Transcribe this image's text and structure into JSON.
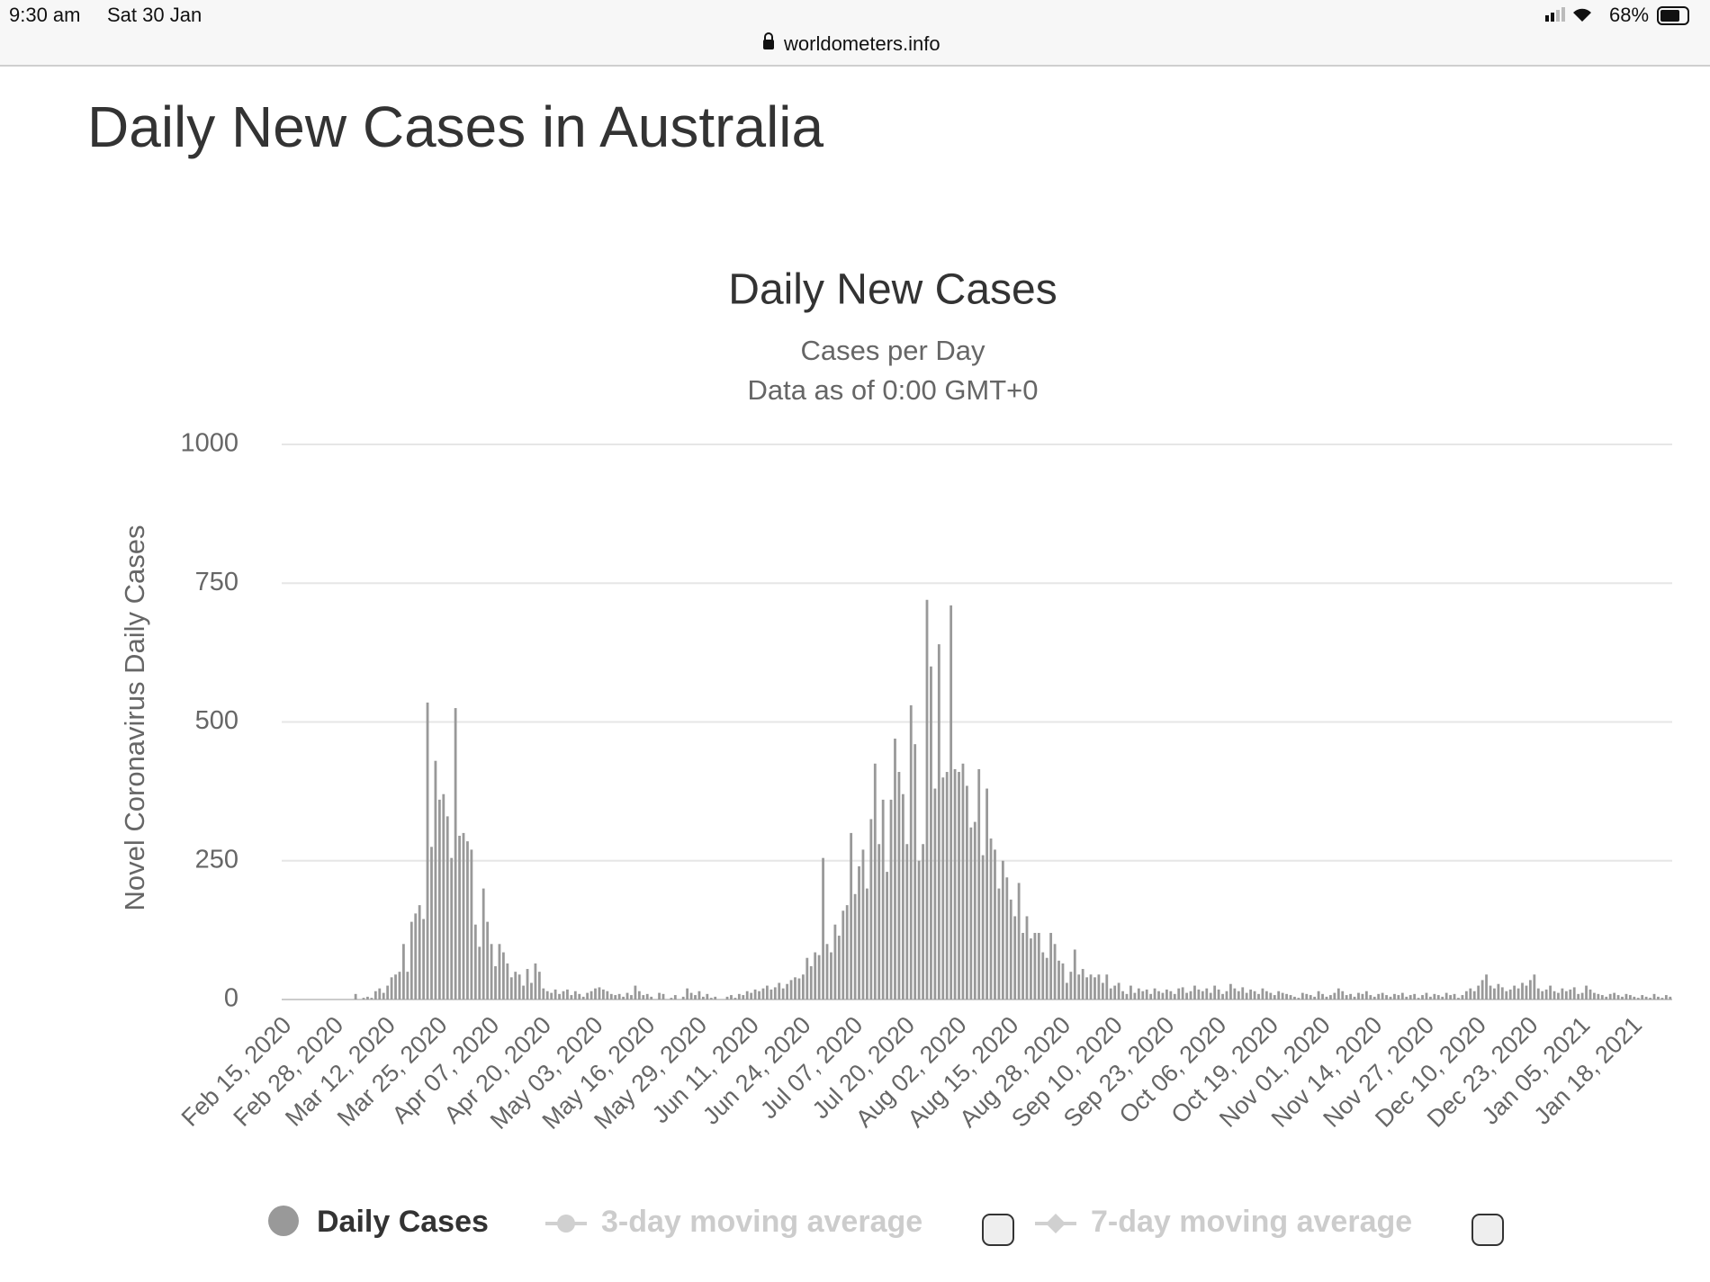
{
  "status_bar": {
    "time": "9:30 am",
    "date": "Sat 30 Jan",
    "url": "worldometers.info",
    "battery": "68%"
  },
  "page_title": "Daily New Cases in Australia",
  "chart_data": {
    "type": "bar",
    "title": "Daily New Cases",
    "subtitle": [
      "Cases per Day",
      "Data as of 0:00 GMT+0"
    ],
    "y_label": "Novel Coronavirus Daily Cases",
    "ylim": [
      0,
      1000
    ],
    "yticks": [
      0,
      250,
      500,
      750,
      1000
    ],
    "grid": true,
    "categories": [
      "Feb 15, 2020",
      null,
      null,
      null,
      null,
      null,
      null,
      null,
      null,
      null,
      null,
      null,
      null,
      "Feb 28, 2020",
      null,
      null,
      null,
      null,
      null,
      null,
      null,
      null,
      null,
      null,
      null,
      null,
      "Mar 12, 2020",
      null,
      null,
      null,
      null,
      null,
      null,
      null,
      null,
      null,
      null,
      null,
      null,
      "Mar 25, 2020",
      null,
      null,
      null,
      null,
      null,
      null,
      null,
      null,
      null,
      null,
      null,
      null,
      "Apr 07, 2020",
      null,
      null,
      null,
      null,
      null,
      null,
      null,
      null,
      null,
      null,
      null,
      null,
      "Apr 20, 2020",
      null,
      null,
      null,
      null,
      null,
      null,
      null,
      null,
      null,
      null,
      null,
      null,
      "May 03, 2020",
      null,
      null,
      null,
      null,
      null,
      null,
      null,
      null,
      null,
      null,
      null,
      null,
      "May 16, 2020",
      null,
      null,
      null,
      null,
      null,
      null,
      null,
      null,
      null,
      null,
      null,
      null,
      "May 29, 2020",
      null,
      null,
      null,
      null,
      null,
      null,
      null,
      null,
      null,
      null,
      null,
      null,
      "Jun 11, 2020",
      null,
      null,
      null,
      null,
      null,
      null,
      null,
      null,
      null,
      null,
      null,
      null,
      "Jun 24, 2020",
      null,
      null,
      null,
      null,
      null,
      null,
      null,
      null,
      null,
      null,
      null,
      null,
      "Jul 07, 2020",
      null,
      null,
      null,
      null,
      null,
      null,
      null,
      null,
      null,
      null,
      null,
      null,
      "Jul 20, 2020",
      null,
      null,
      null,
      null,
      null,
      null,
      null,
      null,
      null,
      null,
      null,
      null,
      "Aug 02, 2020",
      null,
      null,
      null,
      null,
      null,
      null,
      null,
      null,
      null,
      null,
      null,
      null,
      "Aug 15, 2020",
      null,
      null,
      null,
      null,
      null,
      null,
      null,
      null,
      null,
      null,
      null,
      null,
      "Aug 28, 2020",
      null,
      null,
      null,
      null,
      null,
      null,
      null,
      null,
      null,
      null,
      null,
      null,
      "Sep 10, 2020",
      null,
      null,
      null,
      null,
      null,
      null,
      null,
      null,
      null,
      null,
      null,
      null,
      "Sep 23, 2020",
      null,
      null,
      null,
      null,
      null,
      null,
      null,
      null,
      null,
      null,
      null,
      null,
      "Oct 06, 2020",
      null,
      null,
      null,
      null,
      null,
      null,
      null,
      null,
      null,
      null,
      null,
      null,
      "Oct 19, 2020",
      null,
      null,
      null,
      null,
      null,
      null,
      null,
      null,
      null,
      null,
      null,
      null,
      "Nov 01, 2020",
      null,
      null,
      null,
      null,
      null,
      null,
      null,
      null,
      null,
      null,
      null,
      null,
      "Nov 14, 2020",
      null,
      null,
      null,
      null,
      null,
      null,
      null,
      null,
      null,
      null,
      null,
      null,
      "Nov 27, 2020",
      null,
      null,
      null,
      null,
      null,
      null,
      null,
      null,
      null,
      null,
      null,
      null,
      "Dec 10, 2020",
      null,
      null,
      null,
      null,
      null,
      null,
      null,
      null,
      null,
      null,
      null,
      null,
      "Dec 23, 2020",
      null,
      null,
      null,
      null,
      null,
      null,
      null,
      null,
      null,
      null,
      null,
      null,
      "Jan 05, 2021",
      null,
      null,
      null,
      null,
      null,
      null,
      null,
      null,
      null,
      null,
      null,
      null,
      "Jan 18, 2021",
      null,
      null,
      null,
      null,
      null,
      null,
      null,
      null,
      null
    ],
    "series": [
      {
        "name": "Daily Cases",
        "color": "#999999",
        "values": [
          0,
          0,
          0,
          0,
          0,
          0,
          0,
          0,
          0,
          0,
          0,
          0,
          0,
          0,
          0,
          0,
          0,
          0,
          10,
          0,
          3,
          5,
          3,
          15,
          20,
          12,
          25,
          40,
          45,
          50,
          100,
          50,
          140,
          155,
          170,
          145,
          535,
          275,
          430,
          360,
          370,
          330,
          255,
          525,
          295,
          300,
          285,
          270,
          135,
          95,
          200,
          140,
          100,
          60,
          100,
          85,
          65,
          40,
          50,
          45,
          25,
          55,
          30,
          65,
          50,
          20,
          15,
          12,
          18,
          10,
          15,
          18,
          8,
          15,
          10,
          5,
          12,
          15,
          20,
          22,
          18,
          15,
          10,
          8,
          10,
          5,
          12,
          8,
          25,
          15,
          8,
          10,
          5,
          0,
          12,
          10,
          0,
          3,
          8,
          0,
          5,
          20,
          12,
          8,
          15,
          5,
          10,
          3,
          5,
          0,
          0,
          5,
          8,
          3,
          10,
          8,
          15,
          12,
          18,
          15,
          20,
          25,
          18,
          22,
          30,
          20,
          28,
          35,
          40,
          38,
          45,
          75,
          60,
          85,
          80,
          255,
          100,
          85,
          135,
          115,
          160,
          170,
          300,
          190,
          240,
          270,
          200,
          325,
          425,
          280,
          360,
          230,
          360,
          470,
          410,
          370,
          280,
          530,
          460,
          250,
          280,
          720,
          600,
          380,
          640,
          400,
          410,
          710,
          415,
          410,
          425,
          385,
          310,
          320,
          415,
          260,
          380,
          290,
          270,
          200,
          250,
          220,
          180,
          150,
          210,
          120,
          150,
          110,
          120,
          120,
          85,
          75,
          120,
          100,
          70,
          65,
          30,
          50,
          90,
          45,
          55,
          40,
          45,
          40,
          45,
          30,
          45,
          20,
          25,
          30,
          15,
          10,
          25,
          12,
          20,
          15,
          18,
          10,
          20,
          15,
          12,
          18,
          15,
          10,
          20,
          22,
          12,
          15,
          25,
          18,
          15,
          20,
          12,
          25,
          18,
          10,
          15,
          28,
          20,
          15,
          22,
          12,
          18,
          15,
          10,
          20,
          15,
          12,
          8,
          15,
          12,
          10,
          8,
          5,
          3,
          12,
          10,
          8,
          5,
          15,
          10,
          5,
          8,
          12,
          20,
          15,
          8,
          10,
          5,
          12,
          10,
          15,
          8,
          5,
          10,
          12,
          8,
          5,
          10,
          8,
          12,
          5,
          8,
          10,
          3,
          8,
          12,
          5,
          10,
          8,
          5,
          12,
          8,
          10,
          3,
          8,
          15,
          20,
          15,
          25,
          35,
          45,
          25,
          20,
          28,
          22,
          15,
          18,
          25,
          20,
          30,
          25,
          35,
          45,
          20,
          15,
          18,
          25,
          15,
          12,
          20,
          15,
          18,
          22,
          10,
          12,
          25,
          18,
          12,
          10,
          8,
          5,
          10,
          12,
          8,
          5,
          10,
          8,
          5,
          3,
          8,
          5,
          3,
          10,
          5,
          3,
          8,
          5
        ]
      }
    ],
    "inactive_legend": [
      "3-day moving average",
      "7-day moving average"
    ]
  }
}
